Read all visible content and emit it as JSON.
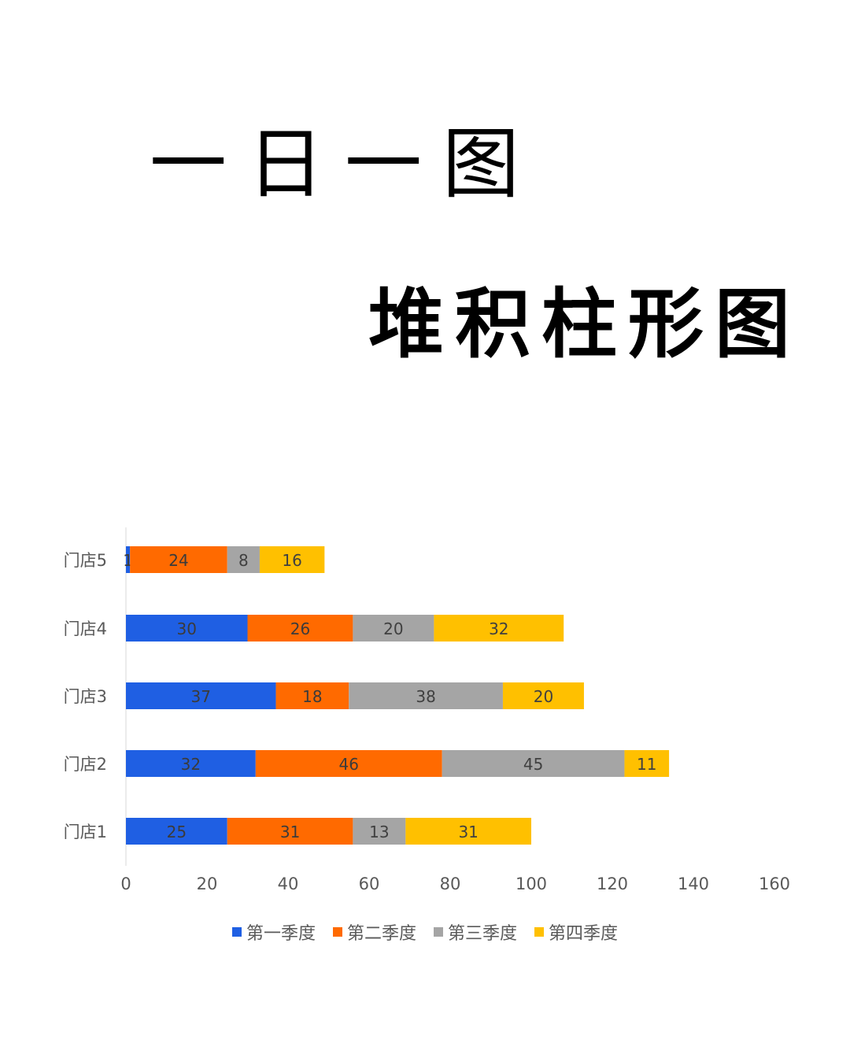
{
  "header": {
    "title": "一日一图",
    "subtitle": "堆积柱形图"
  },
  "chart_data": {
    "type": "bar",
    "orientation": "horizontal",
    "stacked": true,
    "categories": [
      "门店1",
      "门店2",
      "门店3",
      "门店4",
      "门店5"
    ],
    "series": [
      {
        "name": "第一季度",
        "color": "#1f5fe3",
        "values": [
          25,
          32,
          37,
          30,
          1
        ]
      },
      {
        "name": "第二季度",
        "color": "#ff6a00",
        "values": [
          31,
          46,
          18,
          26,
          24
        ]
      },
      {
        "name": "第三季度",
        "color": "#a5a5a5",
        "values": [
          13,
          45,
          38,
          20,
          8
        ]
      },
      {
        "name": "第四季度",
        "color": "#ffc000",
        "values": [
          31,
          11,
          20,
          32,
          16
        ]
      }
    ],
    "xlim": [
      0,
      160
    ],
    "xticks": [
      "0",
      "20",
      "40",
      "60",
      "80",
      "100",
      "120",
      "140",
      "160"
    ],
    "grid": false,
    "legend_position": "bottom",
    "data_labels": true
  }
}
